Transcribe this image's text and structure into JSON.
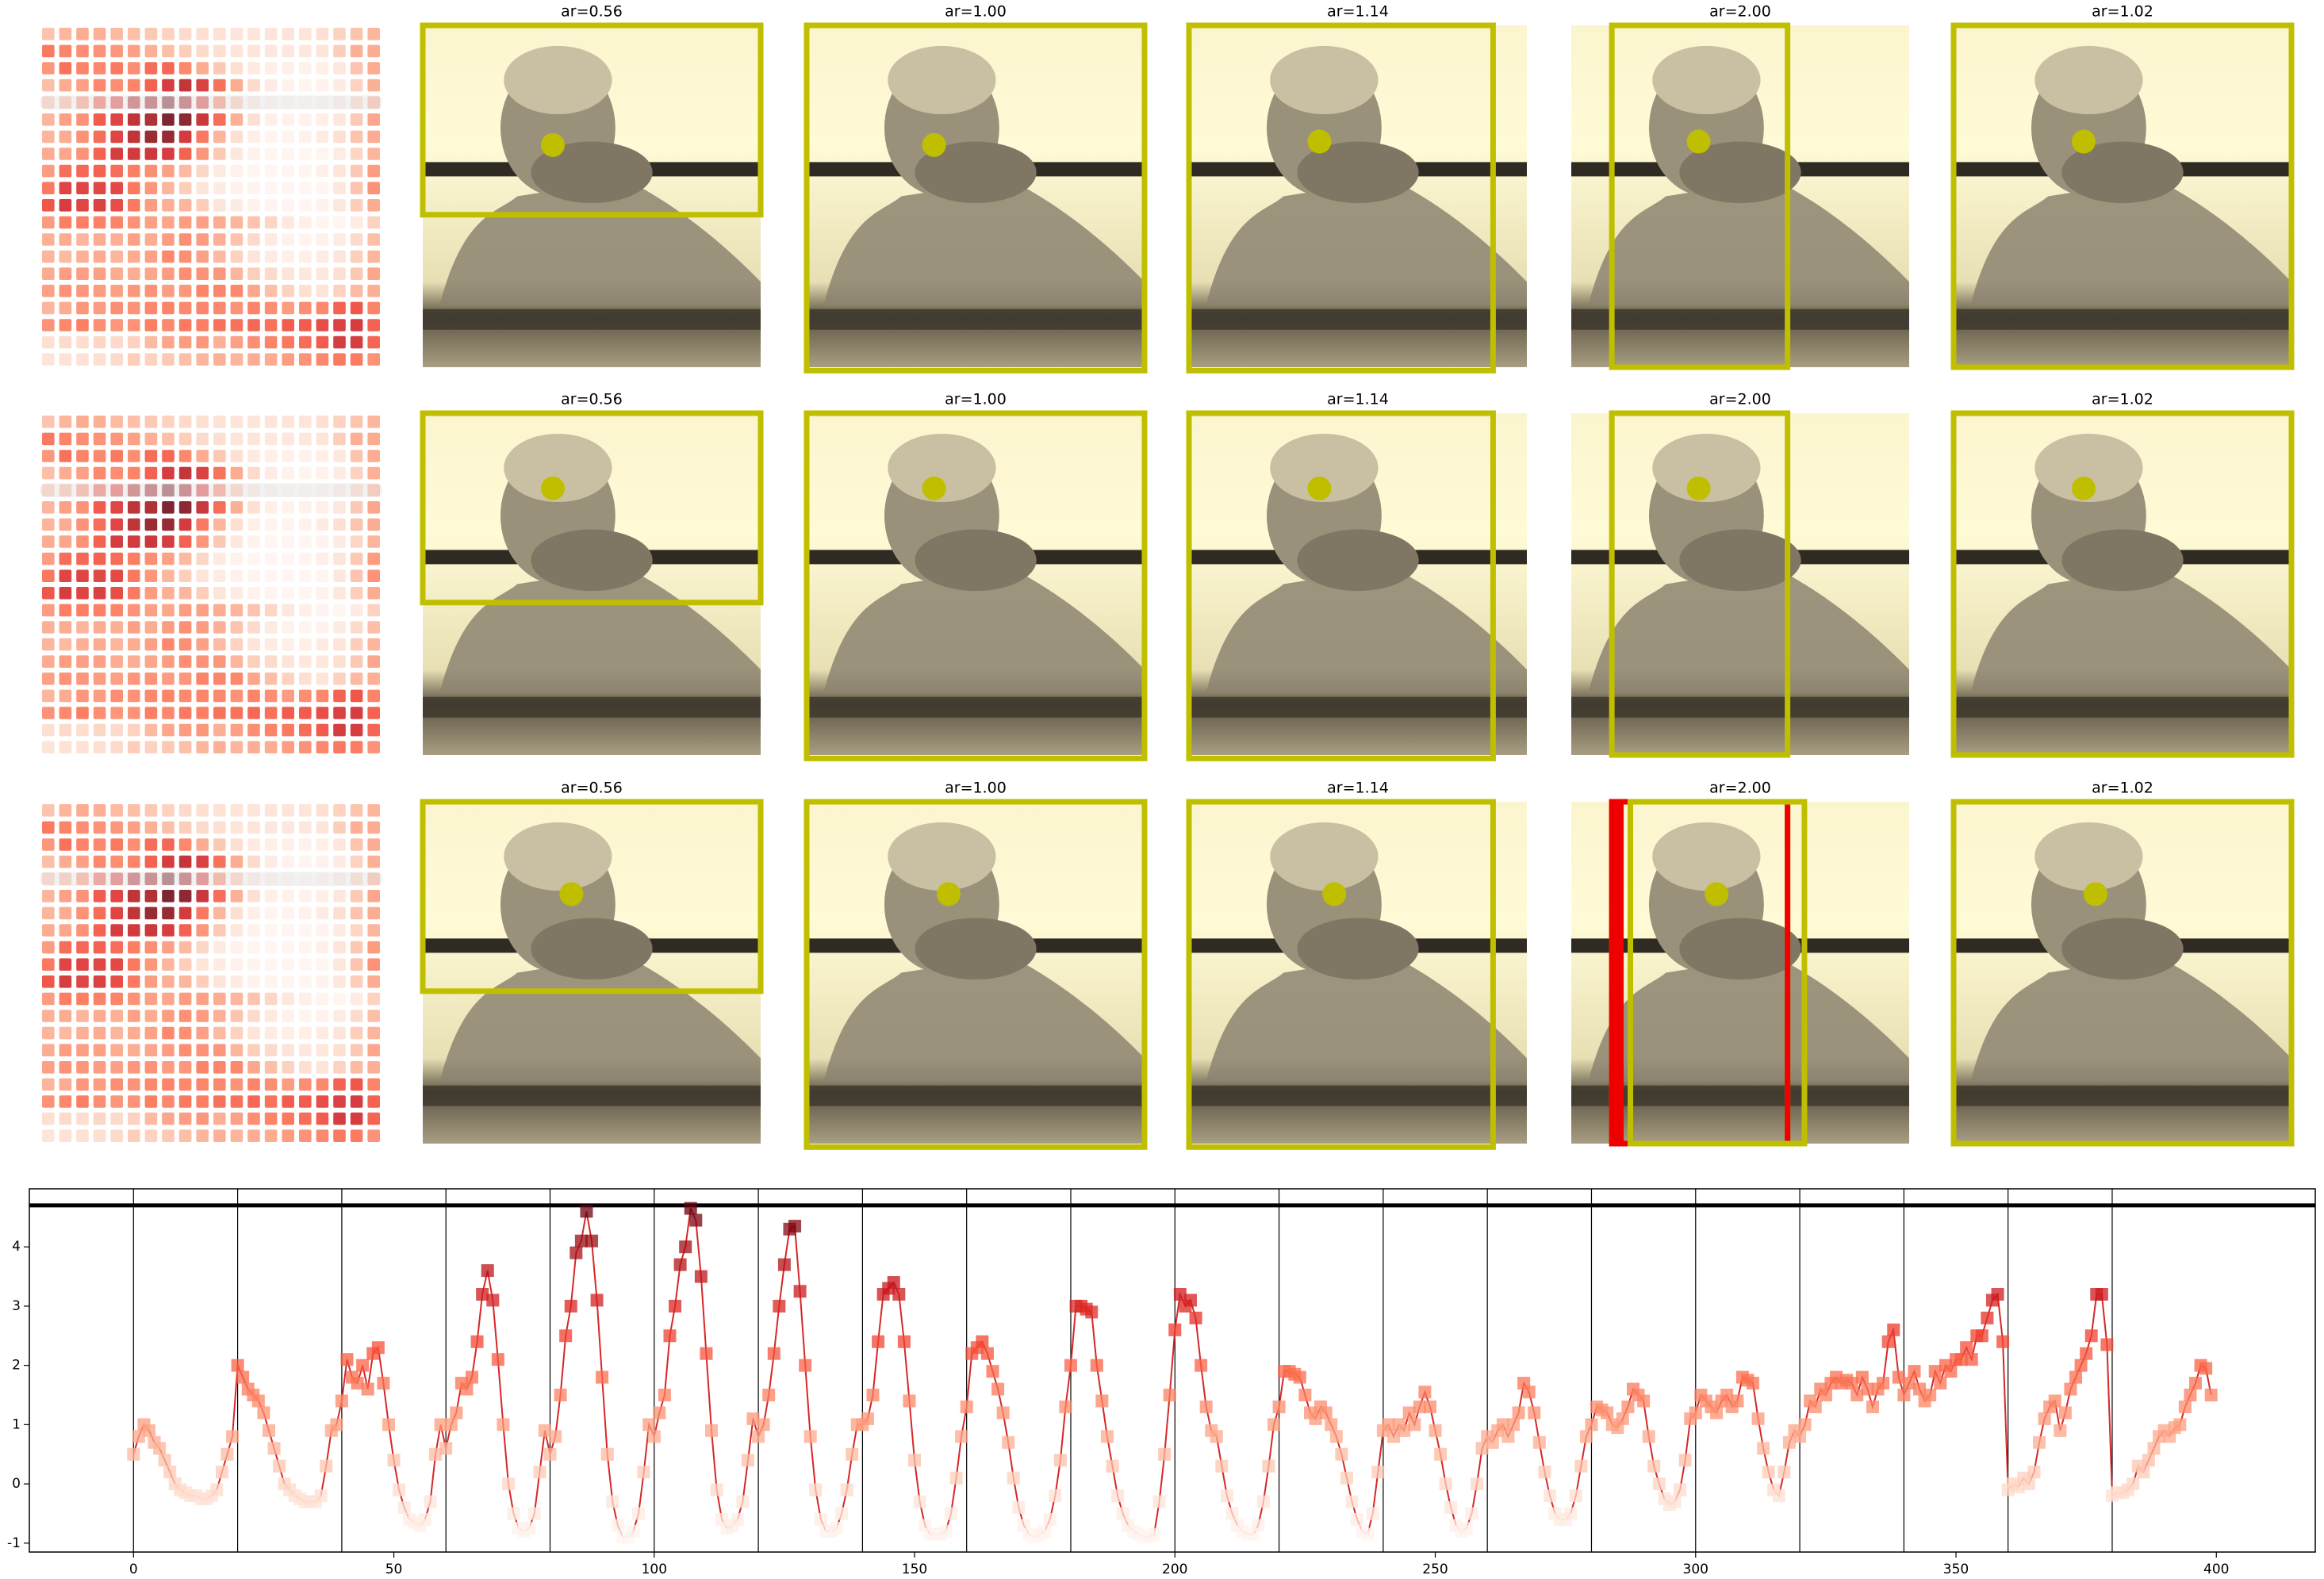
{
  "rows": [
    {
      "titles": [
        "ar=0.56",
        "ar=1.00",
        "ar=1.14",
        "ar=2.00",
        "ar=1.02"
      ]
    },
    {
      "titles": [
        "ar=0.56",
        "ar=1.00",
        "ar=1.14",
        "ar=2.00",
        "ar=1.02"
      ]
    },
    {
      "titles": [
        "ar=0.56",
        "ar=1.00",
        "ar=1.14",
        "ar=2.00",
        "ar=1.02"
      ]
    }
  ],
  "chart_data": {
    "type": "line",
    "color": "#d62728",
    "x": [
      0,
      1,
      2,
      3,
      4,
      5,
      6,
      7,
      8,
      9,
      10,
      11,
      12,
      13,
      14,
      15,
      16,
      17,
      18,
      19,
      20,
      21,
      22,
      23,
      24,
      25,
      26,
      27,
      28,
      29,
      30,
      31,
      32,
      33,
      34,
      35,
      36,
      37,
      38,
      39,
      40,
      41,
      42,
      43,
      44,
      45,
      46,
      47,
      48,
      49,
      50,
      51,
      52,
      53,
      54,
      55,
      56,
      57,
      58,
      59,
      60,
      61,
      62,
      63,
      64,
      65,
      66,
      67,
      68,
      69,
      70,
      71,
      72,
      73,
      74,
      75,
      76,
      77,
      78,
      79,
      80,
      81,
      82,
      83,
      84,
      85,
      86,
      87,
      88,
      89,
      90,
      91,
      92,
      93,
      94,
      95,
      96,
      97,
      98,
      99,
      100,
      101,
      102,
      103,
      104,
      105,
      106,
      107,
      108,
      109,
      110,
      111,
      112,
      113,
      114,
      115,
      116,
      117,
      118,
      119,
      120,
      121,
      122,
      123,
      124,
      125,
      126,
      127,
      128,
      129,
      130,
      131,
      132,
      133,
      134,
      135,
      136,
      137,
      138,
      139,
      140,
      141,
      142,
      143,
      144,
      145,
      146,
      147,
      148,
      149,
      150,
      151,
      152,
      153,
      154,
      155,
      156,
      157,
      158,
      159,
      160,
      161,
      162,
      163,
      164,
      165,
      166,
      167,
      168,
      169,
      170,
      171,
      172,
      173,
      174,
      175,
      176,
      177,
      178,
      179,
      180,
      181,
      182,
      183,
      184,
      185,
      186,
      187,
      188,
      189,
      190,
      191,
      192,
      193,
      194,
      195,
      196,
      197,
      198,
      199,
      200,
      201,
      202,
      203,
      204,
      205,
      206,
      207,
      208,
      209,
      210,
      211,
      212,
      213,
      214,
      215,
      216,
      217,
      218,
      219,
      220,
      221,
      222,
      223,
      224,
      225,
      226,
      227,
      228,
      229,
      230,
      231,
      232,
      233,
      234,
      235,
      236,
      237,
      238,
      239,
      240,
      241,
      242,
      243,
      244,
      245,
      246,
      247,
      248,
      249,
      250,
      251,
      252,
      253,
      254,
      255,
      256,
      257,
      258,
      259,
      260,
      261,
      262,
      263,
      264,
      265,
      266,
      267,
      268,
      269,
      270,
      271,
      272,
      273,
      274,
      275,
      276,
      277,
      278,
      279,
      280,
      281,
      282,
      283,
      284,
      285,
      286,
      287,
      288,
      289,
      290,
      291,
      292,
      293,
      294,
      295,
      296,
      297,
      298,
      299,
      300,
      301,
      302,
      303,
      304,
      305,
      306,
      307,
      308,
      309,
      310,
      311,
      312,
      313,
      314,
      315,
      316,
      317,
      318,
      319,
      320,
      321,
      322,
      323,
      324,
      325,
      326,
      327,
      328,
      329,
      330,
      331,
      332,
      333,
      334,
      335,
      336,
      337,
      338,
      339,
      340,
      341,
      342,
      343,
      344,
      345,
      346,
      347,
      348,
      349,
      350,
      351,
      352,
      353,
      354,
      355,
      356,
      357,
      358,
      359,
      360,
      361,
      362,
      363,
      364,
      365,
      366,
      367,
      368,
      369,
      370,
      371,
      372,
      373,
      374,
      375,
      376,
      377,
      378,
      379,
      380,
      381,
      382,
      383,
      384,
      385,
      386,
      387,
      388,
      389,
      390,
      391,
      392,
      393,
      394,
      395,
      396,
      397,
      398,
      399
    ],
    "values": [
      0.5,
      0.8,
      1.0,
      0.9,
      0.7,
      0.6,
      0.4,
      0.2,
      0.0,
      -0.1,
      -0.15,
      -0.2,
      -0.2,
      -0.25,
      -0.25,
      -0.2,
      -0.1,
      0.2,
      0.5,
      0.8,
      2.0,
      1.8,
      1.6,
      1.5,
      1.4,
      1.2,
      0.9,
      0.6,
      0.3,
      0.0,
      -0.1,
      -0.2,
      -0.25,
      -0.3,
      -0.3,
      -0.3,
      -0.2,
      0.3,
      0.9,
      1.0,
      1.4,
      2.1,
      1.8,
      1.7,
      2.0,
      1.6,
      2.2,
      2.3,
      1.7,
      1.0,
      0.4,
      -0.1,
      -0.4,
      -0.6,
      -0.65,
      -0.7,
      -0.6,
      -0.3,
      0.5,
      1.0,
      0.6,
      1.0,
      1.2,
      1.7,
      1.6,
      1.8,
      2.4,
      3.2,
      3.6,
      3.1,
      2.1,
      1.0,
      0.0,
      -0.5,
      -0.75,
      -0.8,
      -0.75,
      -0.5,
      0.2,
      0.9,
      0.5,
      0.8,
      1.5,
      2.5,
      3.0,
      3.9,
      4.1,
      4.6,
      4.1,
      3.1,
      1.8,
      0.5,
      -0.3,
      -0.7,
      -0.9,
      -0.9,
      -0.8,
      -0.5,
      0.2,
      1.0,
      0.8,
      1.2,
      1.5,
      2.5,
      3.0,
      3.7,
      4.0,
      4.65,
      4.45,
      3.5,
      2.2,
      0.9,
      -0.1,
      -0.6,
      -0.75,
      -0.7,
      -0.6,
      -0.3,
      0.4,
      1.1,
      0.8,
      1.0,
      1.5,
      2.2,
      3.0,
      3.7,
      4.3,
      4.35,
      3.25,
      2.0,
      0.8,
      -0.1,
      -0.6,
      -0.8,
      -0.8,
      -0.75,
      -0.5,
      -0.1,
      0.5,
      1.0,
      1.0,
      1.1,
      1.5,
      2.4,
      3.2,
      3.3,
      3.4,
      3.2,
      2.4,
      1.4,
      0.4,
      -0.3,
      -0.7,
      -0.85,
      -0.85,
      -0.85,
      -0.8,
      -0.5,
      0.1,
      0.8,
      1.3,
      2.2,
      2.3,
      2.4,
      2.2,
      1.9,
      1.6,
      1.2,
      0.7,
      0.1,
      -0.4,
      -0.7,
      -0.85,
      -0.9,
      -0.85,
      -0.8,
      -0.6,
      -0.2,
      0.4,
      1.3,
      2.0,
      3.0,
      3.0,
      2.95,
      2.9,
      2.0,
      1.4,
      0.8,
      0.3,
      -0.2,
      -0.5,
      -0.7,
      -0.8,
      -0.85,
      -0.9,
      -0.9,
      -0.85,
      -0.3,
      0.5,
      1.5,
      2.6,
      3.2,
      3.0,
      3.1,
      2.8,
      2.0,
      1.3,
      0.9,
      0.8,
      0.3,
      -0.2,
      -0.5,
      -0.7,
      -0.8,
      -0.85,
      -0.85,
      -0.7,
      -0.3,
      0.3,
      1.0,
      1.3,
      1.9,
      1.9,
      1.85,
      1.8,
      1.5,
      1.2,
      1.1,
      1.3,
      1.2,
      1.0,
      0.8,
      0.5,
      0.1,
      -0.3,
      -0.6,
      -0.8,
      -0.85,
      -0.5,
      0.2,
      0.9,
      1.0,
      0.8,
      1.0,
      0.9,
      1.2,
      1.0,
      1.3,
      1.55,
      1.3,
      0.9,
      0.5,
      0.0,
      -0.4,
      -0.7,
      -0.8,
      -0.75,
      -0.5,
      0.0,
      0.6,
      0.8,
      0.7,
      0.9,
      1.0,
      0.8,
      1.0,
      1.2,
      1.7,
      1.55,
      1.2,
      0.7,
      0.2,
      -0.2,
      -0.5,
      -0.6,
      -0.6,
      -0.5,
      -0.2,
      0.3,
      0.8,
      1.0,
      1.3,
      1.25,
      1.2,
      1.0,
      0.95,
      1.1,
      1.3,
      1.6,
      1.5,
      1.4,
      0.8,
      0.3,
      0.0,
      -0.25,
      -0.35,
      -0.3,
      -0.1,
      0.4,
      1.1,
      1.2,
      1.5,
      1.4,
      1.3,
      1.2,
      1.4,
      1.5,
      1.3,
      1.4,
      1.8,
      1.75,
      1.7,
      1.1,
      0.6,
      0.2,
      -0.1,
      -0.2,
      0.2,
      0.7,
      0.9,
      0.8,
      1.0,
      1.4,
      1.3,
      1.6,
      1.5,
      1.7,
      1.8,
      1.7,
      1.75,
      1.7,
      1.5,
      1.8,
      1.6,
      1.3,
      1.6,
      1.7,
      2.4,
      2.6,
      1.8,
      1.5,
      1.7,
      1.9,
      1.6,
      1.4,
      1.5,
      1.9,
      1.7,
      2.0,
      1.9,
      2.1,
      2.1,
      2.3,
      2.1,
      2.5,
      2.5,
      2.8,
      3.1,
      3.2,
      2.4,
      -0.1,
      0.0,
      -0.05,
      0.1,
      0.0,
      0.2,
      0.7,
      1.1,
      1.3,
      1.4,
      0.9,
      1.2,
      1.6,
      1.8,
      2.0,
      2.2,
      2.5,
      3.2,
      3.2,
      2.35,
      -0.2,
      -0.15,
      -0.15,
      -0.1,
      0.0,
      0.3,
      0.2,
      0.4,
      0.6,
      0.8,
      0.9,
      0.8,
      0.95,
      1.0,
      1.3,
      1.5,
      1.7,
      2.0,
      1.95,
      1.5
    ],
    "xlim": [
      -20,
      419
    ],
    "ylim": [
      -1.15,
      4.98
    ],
    "xticks": [
      0,
      50,
      100,
      150,
      200,
      250,
      300,
      350,
      400
    ],
    "yticks": [
      -1,
      0,
      1,
      2,
      3,
      4
    ],
    "vlines": [
      0,
      20,
      40,
      60,
      80,
      100,
      120,
      140,
      160,
      180,
      200,
      220,
      240,
      260,
      280,
      300,
      320,
      340,
      360,
      380
    ],
    "hline": 4.7
  }
}
